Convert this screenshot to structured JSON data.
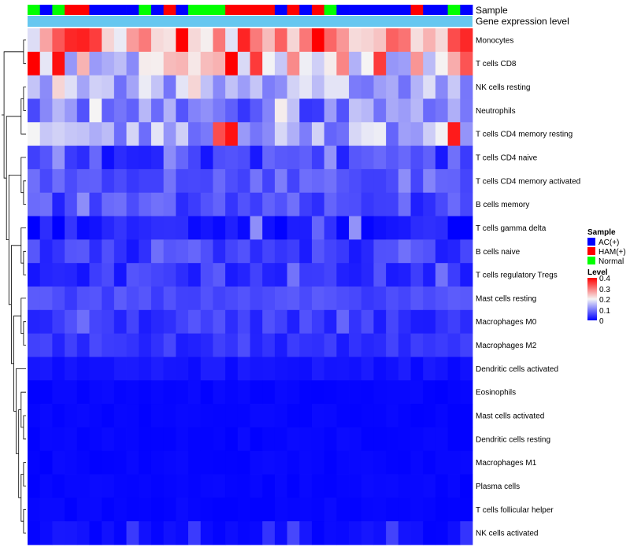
{
  "chart_data": {
    "type": "heatmap",
    "title": "",
    "annotation_labels": [
      "Sample",
      "Gene expression level"
    ],
    "rows": [
      "Monocytes",
      "T cells CD8",
      "NK cells resting",
      "Neutrophils",
      "T cells CD4 memory resting",
      "T cells CD4 naive",
      "T cells CD4 memory activated",
      "B cells memory",
      "T cells gamma delta",
      "B cells naive",
      "T cells regulatory  Tregs",
      "Mast cells resting",
      "Macrophages M0",
      "Macrophages M2",
      "Dendritic cells activated",
      "Eosinophils",
      "Mast cells activated",
      "Dendritic cells resting",
      "Macrophages M1",
      "Plasma cells",
      "T cells follicular helper",
      "NK cells activated"
    ],
    "column_groups": "NBNHHBBBBNBHBNNNHHHHBHBHNBBBBBBHBBNB",
    "row_profiles": [
      {
        "base": 0.28,
        "spread": 0.1,
        "boost": 0.12
      },
      {
        "base": 0.22,
        "spread": 0.12,
        "boost": 0.15
      },
      {
        "base": 0.14,
        "spread": 0.05,
        "boost": 0.05
      },
      {
        "base": 0.1,
        "spread": 0.06,
        "boost": 0.05
      },
      {
        "base": 0.14,
        "spread": 0.06,
        "boost": 0.25
      },
      {
        "base": 0.05,
        "spread": 0.04,
        "boost": 0.05
      },
      {
        "base": 0.07,
        "spread": 0.025,
        "boost": 0.03
      },
      {
        "base": 0.06,
        "spread": 0.035,
        "boost": 0.03
      },
      {
        "base": 0.02,
        "spread": 0.025,
        "boost": 0.08
      },
      {
        "base": 0.045,
        "spread": 0.03,
        "boost": 0.04
      },
      {
        "base": 0.04,
        "spread": 0.025,
        "boost": 0.03
      },
      {
        "base": 0.06,
        "spread": 0.015,
        "boost": 0.01
      },
      {
        "base": 0.045,
        "spread": 0.025,
        "boost": 0.02
      },
      {
        "base": 0.04,
        "spread": 0.02,
        "boost": 0.01
      },
      {
        "base": 0.015,
        "spread": 0.01,
        "boost": 0.0
      },
      {
        "base": 0.005,
        "spread": 0.004,
        "boost": 0.0
      },
      {
        "base": 0.005,
        "spread": 0.004,
        "boost": 0.0
      },
      {
        "base": 0.005,
        "spread": 0.004,
        "boost": 0.0
      },
      {
        "base": 0.005,
        "spread": 0.004,
        "boost": 0.0
      },
      {
        "base": 0.005,
        "spread": 0.004,
        "boost": 0.0
      },
      {
        "base": 0.005,
        "spread": 0.004,
        "boost": 0.0
      },
      {
        "base": 0.01,
        "spread": 0.01,
        "boost": 0.04
      }
    ],
    "legend": {
      "sample_title": "Sample",
      "sample_entries": [
        {
          "label": "AC(+)",
          "color": "#0000ff"
        },
        {
          "label": "HAM(+)",
          "color": "#ff0000"
        },
        {
          "label": "Normal",
          "color": "#00ff00"
        }
      ],
      "level_title": "Level",
      "level_ticks": [
        "0.4",
        "0.3",
        "0.2",
        "0.1",
        "0"
      ],
      "level_range": [
        0,
        0.4
      ]
    },
    "colors": {
      "low": "#0000ff",
      "mid": "#f5f5f5",
      "high": "#ff0000",
      "expression_bar": "#66c7f0",
      "group_codes": {
        "B": "#0000ff",
        "H": "#ff0000",
        "N": "#00ff00"
      }
    }
  }
}
